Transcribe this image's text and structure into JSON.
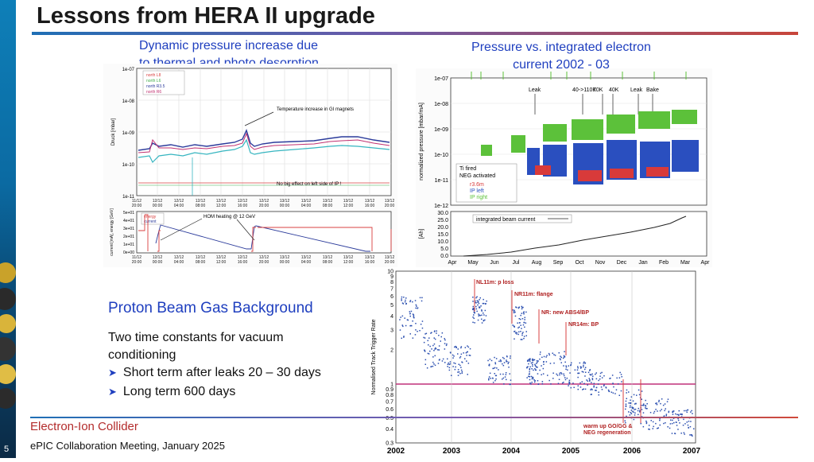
{
  "slide": {
    "number": "5",
    "title": "Lessons from HERA II upgrade"
  },
  "captions": {
    "left_line1": "Dynamic pressure increase due",
    "left_line2": "to thermal and photo desorption",
    "right_line1": "Pressure vs. integrated electron",
    "right_line2": "current 2002 - 03"
  },
  "plot1": {
    "top_ylabel": "Druck [mbar]",
    "top_yticks": [
      "1e-07",
      "1e-08",
      "1e-09",
      "1e-10",
      "1e-11"
    ],
    "legend": [
      "north L8",
      "north L6",
      "north R3.5",
      "north R6"
    ],
    "legend_colors": [
      "#d94040",
      "#3fae4a",
      "#2b3b9b",
      "#c03070"
    ],
    "annot_gi": "Temperature increase in GI magnets",
    "annot_left": "No big effect on left side of IP !",
    "time_ticks": [
      [
        "11/12",
        "20:00"
      ],
      [
        "12/12",
        "00:00"
      ],
      [
        "12/12",
        "04:00"
      ],
      [
        "12/12",
        "08:00"
      ],
      [
        "12/12",
        "12:00"
      ],
      [
        "12/12",
        "16:00"
      ],
      [
        "12/12",
        "20:00"
      ],
      [
        "13/12",
        "00:00"
      ],
      [
        "13/12",
        "04:00"
      ],
      [
        "13/12",
        "08:00"
      ],
      [
        "13/12",
        "12:00"
      ],
      [
        "13/12",
        "16:00"
      ],
      [
        "13/12",
        "20:00"
      ]
    ],
    "bottom_ylabel": "current [mA], energy [GeV]",
    "bottom_yticks": [
      "5e+01",
      "4e+01",
      "3e+01",
      "2e+01",
      "1e+01",
      "0e+00"
    ],
    "bottom_legend": [
      "energy",
      "current"
    ],
    "annot_hom": "HOM heating @ 12 GeV"
  },
  "plot2": {
    "ylabel": "normalized pressure [mbar/mA]",
    "yticks": [
      "1e-07",
      "1e-08",
      "1e-09",
      "1e-10",
      "1e-11",
      "1e-12"
    ],
    "events": [
      "Leak",
      "40->110K",
      "70K",
      "40K",
      "Leak",
      "Bake"
    ],
    "annot_ti": "Ti fired",
    "annot_neg": "NEG activated",
    "legend": [
      "r3.6m",
      "IP left",
      "IP right"
    ],
    "legend_colors": [
      "#d83a3a",
      "#2a4fbf",
      "#5cc13a"
    ],
    "lower_ylabel": "[Ah]",
    "lower_yticks": [
      "30.0",
      "25.0",
      "20.0",
      "15.0",
      "10.0",
      "5.0",
      "0.0"
    ],
    "lower_legend": "integrated beam current",
    "months": [
      "Apr",
      "May",
      "Jun",
      "Jul",
      "Aug",
      "Sep",
      "Oct",
      "Nov",
      "Dec",
      "Jan",
      "Feb",
      "Mar",
      "Apr"
    ]
  },
  "plot3": {
    "ylabel": "Normalised Track Trigger Rate",
    "yticks": [
      "10",
      "9",
      "8",
      "7",
      "6",
      "5",
      "4",
      "3",
      "2",
      "1",
      "0.9",
      "0.8",
      "0.7",
      "0.6",
      "0.5",
      "0.4",
      "0.3"
    ],
    "xticks": [
      "2002",
      "2003",
      "2004",
      "2005",
      "2006",
      "2007"
    ],
    "annotations": [
      "NL11m: p loss",
      "NR11m: flange",
      "NR: new ABS4/BP",
      "NR14m: BP",
      "warm up GO/GG &",
      "NEG regeneration"
    ],
    "ref_color": "#c0307a",
    "point_color": "#2b4fb0"
  },
  "section": {
    "heading": "Proton Beam Gas Background",
    "body_line1": "Two time constants for vacuum",
    "body_line2": "conditioning",
    "bullets": [
      "Short term after leaks 20 – 30 days",
      "Long term 600 days"
    ]
  },
  "footer": {
    "brand": "Electron-Ion Collider",
    "meeting": "ePIC Collaboration Meeting, January 2025"
  }
}
